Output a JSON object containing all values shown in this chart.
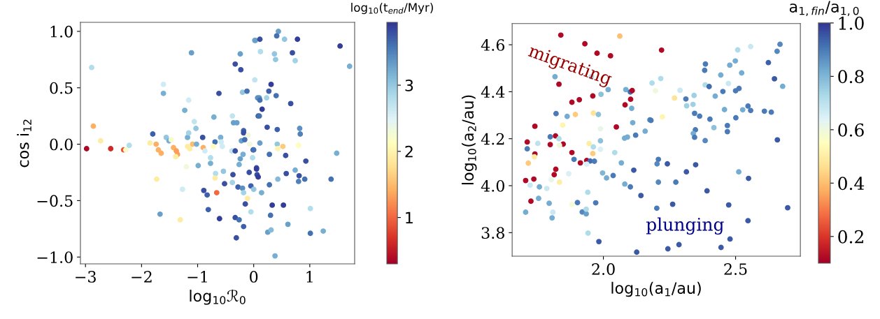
{
  "chart_data": [
    {
      "type": "scatter",
      "marker": "circle",
      "xlabel": "log$_{10}$ℛ$_{0}$",
      "ylabel": "cos i$_{12}$",
      "clabel": "log$_{10}$(t$_{end}$/Myr)",
      "xlim": [
        -3.09,
        1.8
      ],
      "ylim": [
        -1.06,
        1.08
      ],
      "xticks": [
        {
          "value": -3,
          "label": "−3"
        },
        {
          "value": -2,
          "label": "−2"
        },
        {
          "value": -1,
          "label": "−1"
        },
        0,
        1
      ],
      "yticks": [
        {
          "value": -1.0,
          "label": "−1.0"
        },
        {
          "value": -0.5,
          "label": "−0.5"
        },
        {
          "value": 0.0,
          "label": "0.0"
        },
        {
          "value": 0.5,
          "label": "0.5"
        },
        {
          "value": 1.0,
          "label": "1.0"
        }
      ],
      "clim": [
        0.3,
        3.95
      ],
      "cticks": [
        1,
        2,
        3
      ],
      "x": [
        -2.89,
        -2.86,
        -2.73,
        -2.98,
        -2.55,
        -2.32,
        -2.28,
        -2.22,
        -1.85,
        -1.74,
        -1.7,
        -1.65,
        -1.8,
        -1.61,
        -1.61,
        -1.56,
        -1.51,
        -1.47,
        -1.43,
        -1.38,
        -1.36,
        -1.39,
        -1.73,
        -1.67,
        -1.31,
        -1.27,
        -1.2,
        -1.16,
        -1.23,
        -1.11,
        -1.06,
        -1.03,
        -1.18,
        -1.16,
        -1.18,
        -1.14,
        -1.09,
        -1.02,
        -0.91,
        -0.9,
        -0.87,
        -0.99,
        -0.77,
        -0.77,
        -0.71,
        -0.69,
        -0.72,
        -0.59,
        -0.58,
        -0.56,
        -0.68,
        -0.69,
        -0.54,
        -0.52,
        -0.89,
        -0.83,
        -0.66,
        -0.81,
        -0.61,
        -0.62,
        -0.38,
        -0.36,
        -0.3,
        -0.39,
        -0.33,
        -0.37,
        -0.38,
        -0.28,
        -0.2,
        -0.18,
        -0.33,
        -0.26,
        -0.18,
        -0.31,
        -0.33,
        -0.24,
        -0.23,
        -0.2,
        -0.12,
        -0.24,
        -0.26,
        -0.19,
        -0.22,
        -0.16,
        -0.18,
        -0.18,
        -0.1,
        -0.07,
        -0.02,
        -0.01,
        -0.08,
        -0.05,
        -0.11,
        -0.15,
        -0.05,
        0.02,
        0.02,
        0.05,
        0.06,
        0.07,
        0.08,
        0.44,
        0.41,
        0.03,
        0.11,
        0.55,
        0.78,
        0.12,
        0.37,
        0.39,
        0.69,
        0.74,
        1.54,
        1.71,
        0.31,
        0.27,
        0.4,
        0.23,
        0.1,
        0.11,
        0.66,
        0.15,
        0.1,
        0.24,
        0.42,
        0.82,
        0.83,
        0.11,
        0.42,
        0.52,
        0.43,
        0.8,
        0.0,
        0.28,
        0.57,
        1.48,
        0.93,
        0.05,
        0.08,
        0.74,
        0.58,
        0.81,
        0.91,
        0.8,
        1.38,
        0.43,
        0.28,
        0.0,
        0.14,
        0.33,
        0.53,
        1.01,
        0.3,
        0.61,
        0.25,
        0.31,
        1.01,
        1.24,
        0.38
      ],
      "values": [
        0.68,
        0.16,
        0.03,
        -0.04,
        -0.04,
        -0.05,
        -0.05,
        -0.01,
        0.01,
        0.0,
        -0.05,
        -0.08,
        0.09,
        0.53,
        0.45,
        0.06,
        0.03,
        0.04,
        -0.03,
        -0.06,
        -0.09,
        -0.11,
        -0.31,
        -0.62,
        -0.67,
        -0.4,
        -0.2,
        0.39,
        0.3,
        0.81,
        0.2,
        0.14,
        0.06,
        0.1,
        -0.02,
        -0.04,
        0.0,
        0.0,
        0.06,
        -0.03,
        -0.06,
        -0.19,
        -0.12,
        -0.17,
        0.24,
        0.02,
        -0.02,
        0.06,
        0.02,
        -0.02,
        -0.26,
        -0.3,
        -0.24,
        -0.35,
        -0.41,
        -0.45,
        -0.43,
        -0.58,
        -0.66,
        0.45,
        0.25,
        0.19,
        0.19,
        -0.06,
        -0.06,
        -0.27,
        -0.34,
        -0.38,
        -0.39,
        -0.43,
        -0.65,
        -0.67,
        -0.73,
        -0.83,
        0.71,
        0.8,
        0.66,
        0.46,
        0.47,
        -0.13,
        -0.18,
        -0.09,
        0.03,
        0.04,
        0.12,
        0.1,
        0.08,
        0.0,
        -0.12,
        -0.05,
        -0.25,
        -0.37,
        -0.48,
        -0.53,
        -0.6,
        0.57,
        0.92,
        -0.21,
        -0.27,
        0.41,
        0.25,
        1.0,
        0.96,
        0.92,
        0.93,
        0.93,
        0.93,
        0.82,
        0.8,
        0.75,
        0.81,
        0.74,
        0.87,
        0.69,
        0.53,
        0.47,
        0.43,
        0.41,
        0.41,
        0.39,
        0.36,
        0.31,
        0.25,
        0.15,
        0.13,
        0.14,
        0.09,
        0.01,
        0.0,
        -0.02,
        -0.04,
        -0.01,
        -0.05,
        -0.09,
        -0.1,
        -0.08,
        -0.15,
        -0.22,
        -0.29,
        -0.23,
        -0.26,
        -0.28,
        -0.31,
        -0.33,
        -0.31,
        -0.31,
        -0.36,
        -0.4,
        -0.43,
        -0.54,
        -0.54,
        -0.57,
        -0.63,
        -0.71,
        -0.78,
        -0.76,
        -0.79,
        -0.77,
        -0.99
      ],
      "cvalues": [
        2.8,
        1.4,
        1.9,
        0.35,
        0.6,
        0.9,
        2.2,
        2.8,
        1.9,
        1.4,
        1.4,
        1.4,
        3.7,
        2.6,
        3.2,
        3.0,
        3.2,
        2.2,
        1.4,
        1.3,
        1.3,
        1.9,
        1.9,
        3.3,
        1.9,
        2.6,
        2.3,
        2.6,
        3.2,
        3.3,
        2.7,
        3.0,
        3.2,
        2.9,
        1.9,
        1.9,
        1.5,
        3.2,
        3.8,
        1.4,
        2.6,
        3.2,
        2.8,
        3.2,
        3.2,
        3.6,
        2.1,
        3.2,
        2.6,
        2.6,
        2.8,
        1.9,
        3.0,
        3.8,
        3.8,
        3.7,
        1.0,
        3.7,
        3.9,
        3.8,
        2.7,
        3.3,
        3.3,
        2.7,
        3.8,
        3.8,
        2.9,
        3.7,
        3.4,
        2.9,
        3.8,
        3.6,
        3.7,
        3.8,
        3.8,
        3.3,
        3.8,
        3.0,
        3.6,
        3.3,
        3.2,
        3.2,
        3.3,
        3.6,
        3.7,
        3.8,
        2.3,
        2.3,
        2.8,
        3.8,
        3.8,
        3.7,
        1.9,
        3.8,
        2.8,
        2.7,
        3.3,
        3.8,
        3.8,
        3.4,
        3.7,
        3.3,
        3.6,
        3.3,
        3.8,
        3.0,
        3.9,
        2.8,
        3.0,
        3.0,
        3.8,
        2.9,
        3.9,
        3.2,
        3.9,
        3.7,
        3.6,
        2.9,
        3.4,
        3.6,
        3.8,
        3.9,
        3.6,
        3.8,
        3.7,
        3.4,
        3.5,
        3.3,
        3.0,
        1.6,
        2.0,
        2.1,
        3.6,
        3.6,
        3.8,
        3.2,
        3.8,
        3.9,
        3.9,
        3.2,
        3.8,
        3.8,
        3.6,
        3.5,
        3.6,
        3.1,
        3.6,
        3.0,
        3.2,
        3.9,
        3.9,
        2.8,
        3.6,
        3.3,
        3.3,
        3.1,
        3.6,
        3.2,
        3.2
      ]
    },
    {
      "type": "scatter",
      "marker": "circle",
      "xlabel": "log$_{10}$(a$_{1}$/au)",
      "ylabel": "log$_{10}$(a$_{2}$/au)",
      "clabel": "a$_{1,fin}$/a$_{1,0}$",
      "annotations": [
        "migrating",
        "plunging"
      ],
      "xlim": [
        1.655,
        2.745
      ],
      "ylim": [
        3.7,
        4.69
      ],
      "xticks": [
        {
          "value": 2.0,
          "label": "2.0"
        },
        {
          "value": 2.5,
          "label": "2.5"
        }
      ],
      "yticks": [
        {
          "value": 3.8,
          "label": "3.8"
        },
        {
          "value": 4.0,
          "label": "4.0"
        },
        {
          "value": 4.2,
          "label": "4.2"
        },
        {
          "value": 4.4,
          "label": "4.4"
        },
        {
          "value": 4.6,
          "label": "4.6"
        }
      ],
      "clim": [
        0.1,
        1.0
      ],
      "cticks": [
        {
          "value": 0.2,
          "label": "0.2"
        },
        {
          "value": 0.4,
          "label": "0.4"
        },
        {
          "value": 0.6,
          "label": "0.6"
        },
        {
          "value": 0.8,
          "label": "0.8"
        },
        {
          "value": 1.0,
          "label": "1.0"
        }
      ],
      "x": [
        1.839,
        1.93,
        1.976,
        2.027,
        2.062,
        1.817,
        1.832,
        1.955,
        2.018,
        2.085,
        2.102,
        2.109,
        2.103,
        2.082,
        2.107,
        1.881,
        1.909,
        1.96,
        1.991,
        1.821,
        1.863,
        1.894,
        1.962,
        1.981,
        1.741,
        1.846,
        1.989,
        2.049,
        2.111,
        2.158,
        2.176,
        2.122,
        1.712,
        1.712,
        1.752,
        1.799,
        1.819,
        1.799,
        1.832,
        1.848,
        1.834,
        1.946,
        1.989,
        1.962,
        1.989,
        1.96,
        2.043,
        2.08,
        2.091,
        1.881,
        1.889,
        1.913,
        1.937,
        1.95,
        1.966,
        1.937,
        2.068,
        2.115,
        1.741,
        1.739,
        1.716,
        1.82,
        1.814,
        1.869,
        1.834,
        1.803,
        1.706,
        1.737,
        1.723,
        1.758,
        1.786,
        1.997,
        2.012,
        2.037,
        2.081,
        2.102,
        2.142,
        1.726,
        1.755,
        1.795,
        1.706,
        1.809,
        1.806,
        1.881,
        1.902,
        1.92,
        1.935,
        1.935,
        1.941,
        1.971,
        1.942,
        1.983,
        2.126,
        2.184,
        2.22,
        2.508,
        2.557,
        2.668,
        2.657,
        2.624,
        2.647,
        2.678,
        2.386,
        2.383,
        2.499,
        2.478,
        2.523,
        2.444,
        2.217,
        2.197,
        2.29,
        2.269,
        2.312,
        2.343,
        2.315,
        2.339,
        2.385,
        2.4,
        2.423,
        2.452,
        2.473,
        2.5,
        2.513,
        2.345,
        2.364,
        2.403,
        2.458,
        2.501,
        2.527,
        2.547,
        2.557,
        2.609,
        2.635,
        2.18,
        2.223,
        2.418,
        2.469,
        2.469,
        2.348,
        2.34,
        2.345,
        2.385,
        2.658,
        2.208,
        2.203,
        2.242,
        2.349,
        2.314,
        2.512,
        2.549,
        2.208,
        2.274,
        2.392,
        2.202,
        2.262,
        2.474,
        2.697,
        2.547,
        2.479,
        2.445,
        2.286,
        2.244
      ],
      "values": [
        4.641,
        4.604,
        4.564,
        4.553,
        4.637,
        4.464,
        4.432,
        4.464,
        4.409,
        4.409,
        4.399,
        4.405,
        4.368,
        4.344,
        4.329,
        4.355,
        4.366,
        4.382,
        4.389,
        4.307,
        4.295,
        4.303,
        4.309,
        4.303,
        4.253,
        4.258,
        4.242,
        4.25,
        4.268,
        4.232,
        4.28,
        4.215,
        4.186,
        4.157,
        4.18,
        4.208,
        4.212,
        4.175,
        4.2,
        4.177,
        4.172,
        4.179,
        4.191,
        4.165,
        4.155,
        4.137,
        4.141,
        4.202,
        4.207,
        4.141,
        4.112,
        4.097,
        4.107,
        4.105,
        4.104,
        4.092,
        4.097,
        4.066,
        4.135,
        4.123,
        4.096,
        4.07,
        4.047,
        4.051,
        4.015,
        4.025,
        4.022,
        4.028,
        4.002,
        3.995,
        3.988,
        4.054,
        4.033,
        4.043,
        4.007,
        3.995,
        3.958,
        3.934,
        3.946,
        3.925,
        3.887,
        3.887,
        3.863,
        3.92,
        3.928,
        3.888,
        3.88,
        3.9,
        3.972,
        3.927,
        3.798,
        3.762,
        3.717,
        4.437,
        4.577,
        4.578,
        4.592,
        4.602,
        4.572,
        4.524,
        4.455,
        4.423,
        4.518,
        4.491,
        4.531,
        4.513,
        4.48,
        4.471,
        4.456,
        4.404,
        4.406,
        4.373,
        4.369,
        4.384,
        4.34,
        4.346,
        4.429,
        4.422,
        4.381,
        4.401,
        4.435,
        4.404,
        4.414,
        4.308,
        4.296,
        4.283,
        4.324,
        4.289,
        4.323,
        4.339,
        4.32,
        4.317,
        4.313,
        4.278,
        4.293,
        4.247,
        4.256,
        4.23,
        4.238,
        4.222,
        4.206,
        4.192,
        4.195,
        4.112,
        4.093,
        4.093,
        4.089,
        4.059,
        4.059,
        4.031,
        4.015,
        4.015,
        3.978,
        3.904,
        3.921,
        3.918,
        3.906,
        3.851,
        3.773,
        3.737,
        3.749,
        3.731
      ],
      "cvalues": [
        0.12,
        0.12,
        0.12,
        0.12,
        0.4,
        0.82,
        0.12,
        0.72,
        0.82,
        0.82,
        0.92,
        0.12,
        0.12,
        0.12,
        0.82,
        0.12,
        0.12,
        0.12,
        0.78,
        0.9,
        0.82,
        0.42,
        0.47,
        0.78,
        0.12,
        0.52,
        0.62,
        0.12,
        0.82,
        0.82,
        0.88,
        0.9,
        0.12,
        0.9,
        0.7,
        0.9,
        0.12,
        0.12,
        0.72,
        0.12,
        0.6,
        0.5,
        0.78,
        0.72,
        0.65,
        0.42,
        0.72,
        0.82,
        0.82,
        0.12,
        0.9,
        0.12,
        0.12,
        0.92,
        0.9,
        0.65,
        0.82,
        0.95,
        0.12,
        0.5,
        0.42,
        0.12,
        0.12,
        0.65,
        0.5,
        0.62,
        0.12,
        0.12,
        0.68,
        0.82,
        0.68,
        0.8,
        0.82,
        0.9,
        0.82,
        0.9,
        0.95,
        0.12,
        0.82,
        0.82,
        0.82,
        0.68,
        0.82,
        0.58,
        0.9,
        0.88,
        0.84,
        0.72,
        0.72,
        0.9,
        0.72,
        0.95,
        0.95,
        0.72,
        0.12,
        0.72,
        0.68,
        0.88,
        0.88,
        0.94,
        0.95,
        0.82,
        0.9,
        0.9,
        0.82,
        0.82,
        0.82,
        0.82,
        0.72,
        0.6,
        0.68,
        0.47,
        0.9,
        0.75,
        0.75,
        0.75,
        0.72,
        0.92,
        0.82,
        0.9,
        0.68,
        0.9,
        0.9,
        0.9,
        0.9,
        0.9,
        0.82,
        0.9,
        0.82,
        0.9,
        0.9,
        0.9,
        0.9,
        0.9,
        0.52,
        0.78,
        0.9,
        0.9,
        0.9,
        0.82,
        0.9,
        0.88,
        0.95,
        0.9,
        0.88,
        0.95,
        0.95,
        0.95,
        0.82,
        0.95,
        0.88,
        0.9,
        0.95,
        0.9,
        0.95,
        0.95,
        0.95,
        0.95,
        0.95,
        0.95,
        0.95,
        0.95
      ]
    }
  ]
}
